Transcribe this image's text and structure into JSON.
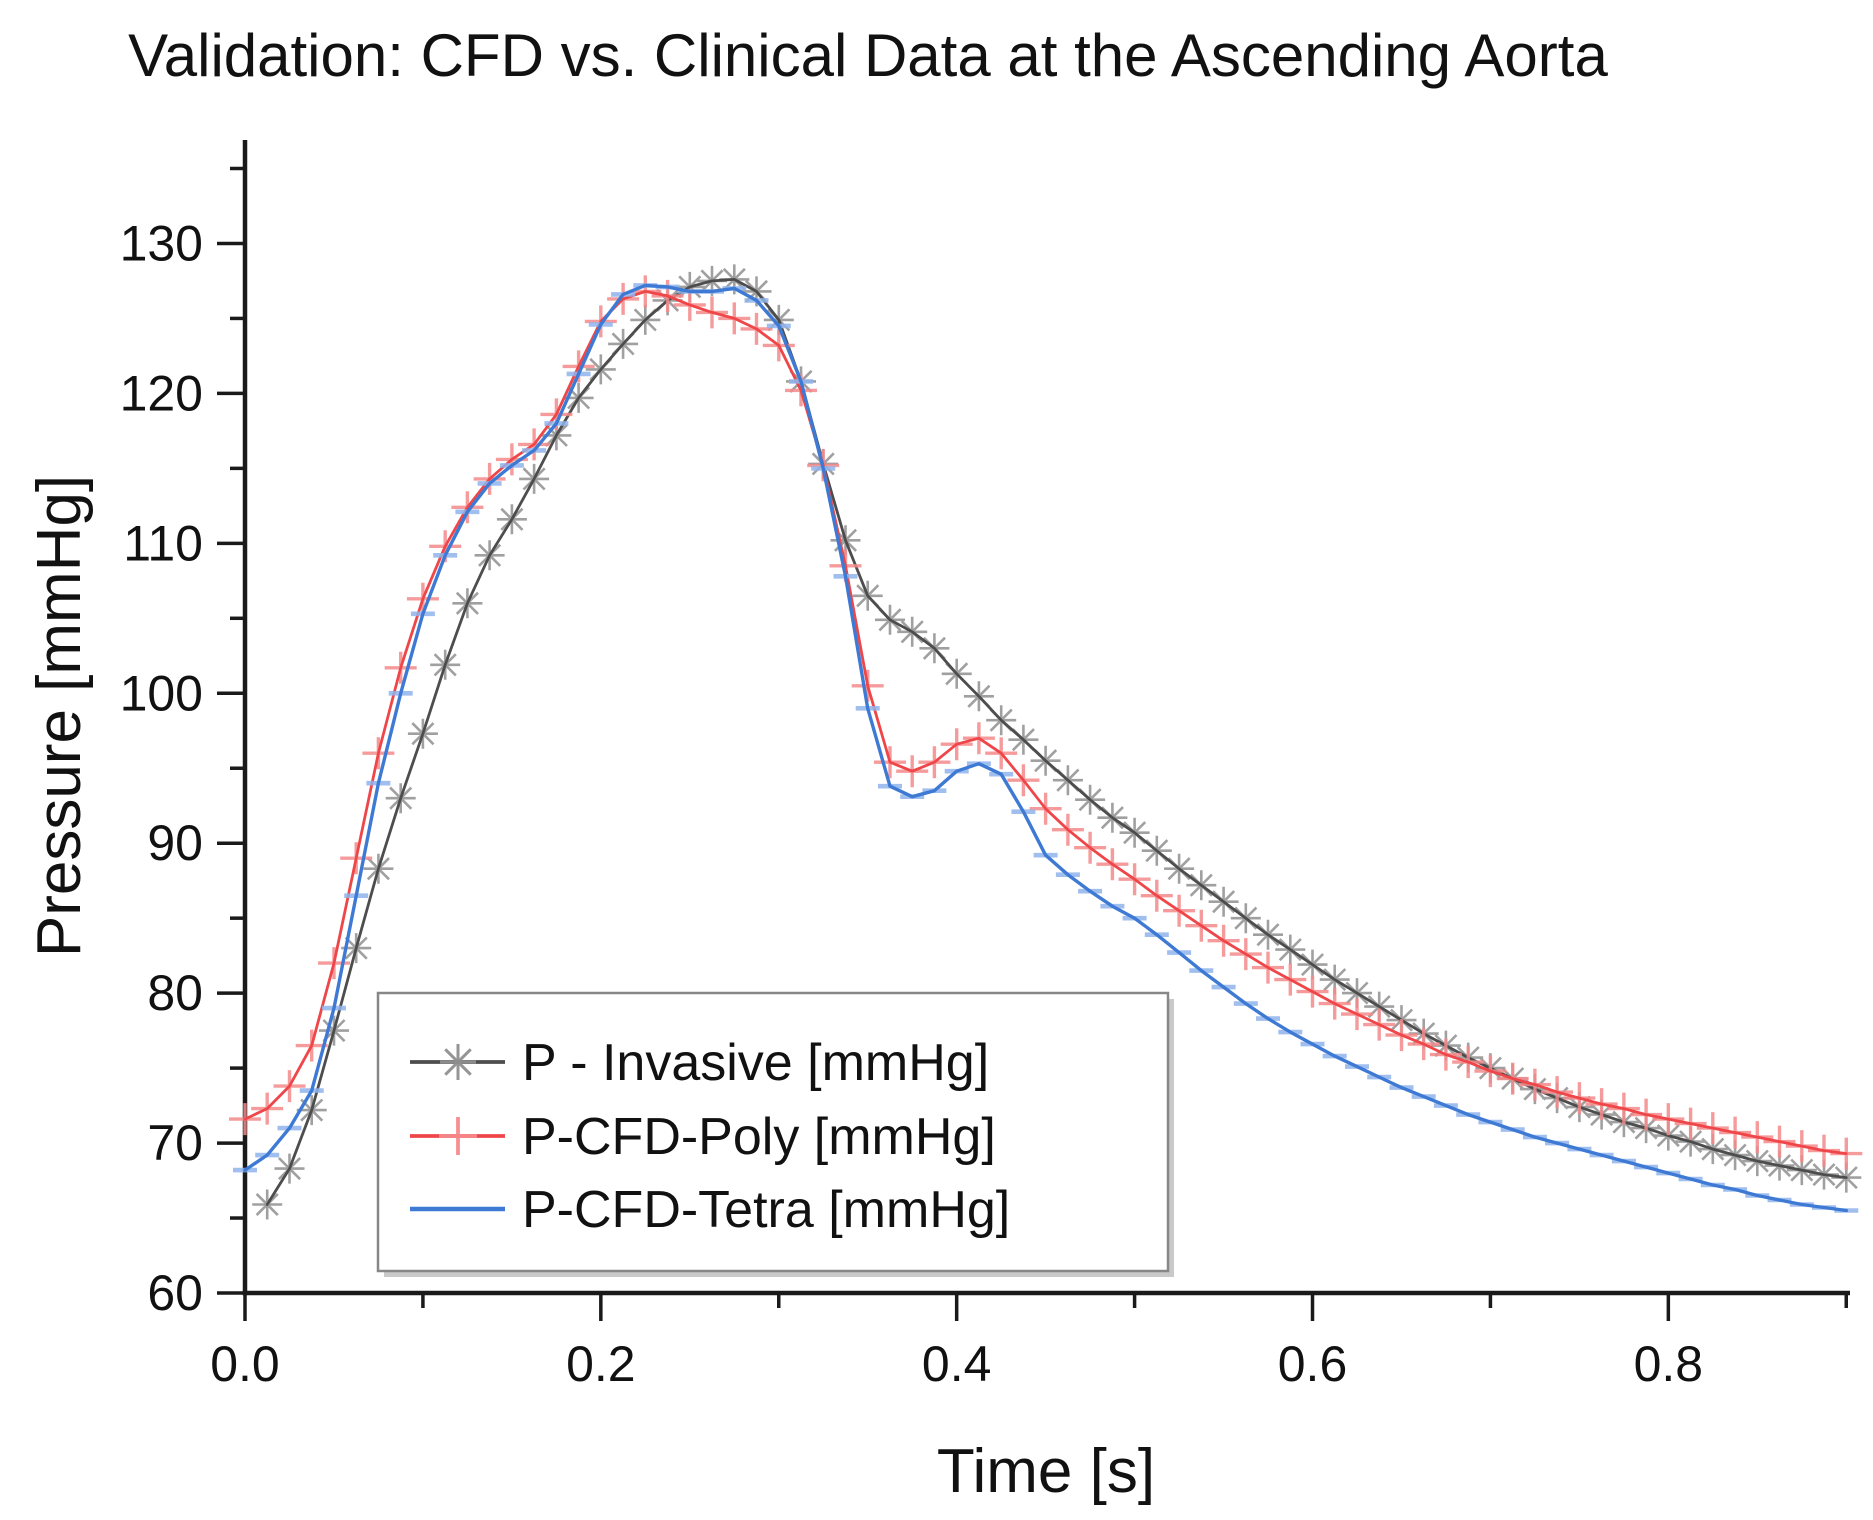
{
  "chart_data": {
    "type": "line",
    "title": "Validation: CFD vs. Clinical Data at the Ascending Aorta",
    "xlabel": "Time [s]",
    "ylabel": "Pressure [mmHg]",
    "xlim": [
      0,
      0.9021
    ],
    "ylim": [
      60,
      136.9
    ],
    "grid": false,
    "background": "#ffffff",
    "axis_color": "#1a1a1a",
    "xticks": {
      "values": [
        0.0,
        0.2,
        0.4,
        0.6,
        0.8
      ],
      "labels": [
        "0.0",
        "0.2",
        "0.4",
        "0.6",
        "0.8"
      ]
    },
    "xticks_minor": [
      0.1,
      0.3,
      0.5,
      0.7,
      0.9
    ],
    "yticks": {
      "values": [
        60,
        70,
        80,
        90,
        100,
        110,
        120,
        130
      ],
      "labels": [
        "60",
        "70",
        "80",
        "90",
        "100",
        "110",
        "120",
        "130"
      ]
    },
    "yticks_minor": [
      65,
      75,
      85,
      95,
      105,
      115,
      125,
      135
    ],
    "x": [
      0,
      0.0125,
      0.025,
      0.0375,
      0.05,
      0.0625,
      0.075,
      0.0875,
      0.1,
      0.1125,
      0.125,
      0.1375,
      0.15,
      0.1625,
      0.175,
      0.1875,
      0.2,
      0.2125,
      0.225,
      0.2375,
      0.25,
      0.2625,
      0.275,
      0.2875,
      0.3,
      0.3125,
      0.325,
      0.3375,
      0.35,
      0.3625,
      0.375,
      0.3875,
      0.4,
      0.4125,
      0.425,
      0.4375,
      0.45,
      0.4625,
      0.475,
      0.4875,
      0.5,
      0.5125,
      0.525,
      0.5375,
      0.55,
      0.5625,
      0.575,
      0.5875,
      0.6,
      0.6125,
      0.625,
      0.6375,
      0.65,
      0.6625,
      0.675,
      0.6875,
      0.7,
      0.7125,
      0.725,
      0.7375,
      0.75,
      0.7625,
      0.775,
      0.7875,
      0.8,
      0.8125,
      0.825,
      0.8375,
      0.85,
      0.8625,
      0.875,
      0.8875,
      0.9
    ],
    "series": [
      {
        "name": "P - Invasive [mmHg]",
        "marker": "asterisk",
        "line_color": "#4d4d4d",
        "marker_color": "#8f8f8f",
        "line_width": 2.8,
        "values": [
          null,
          65.9,
          68.3,
          72.2,
          77.5,
          83,
          88.3,
          93,
          97.3,
          101.9,
          106,
          109.2,
          111.6,
          114.3,
          117.2,
          119.7,
          121.6,
          123.3,
          124.9,
          126.2,
          127.1,
          127.5,
          127.6,
          126.8,
          124.9,
          120.8,
          115.3,
          110.2,
          106.5,
          104.9,
          104.1,
          103,
          101.3,
          99.8,
          98.2,
          96.9,
          95.5,
          94.2,
          92.9,
          91.7,
          90.7,
          89.5,
          88.3,
          87.2,
          86.1,
          85,
          83.9,
          82.9,
          81.9,
          80.9,
          80,
          79.1,
          78.2,
          77.3,
          76.5,
          75.7,
          75,
          74.3,
          73.6,
          73,
          72.4,
          71.9,
          71.4,
          71,
          70.5,
          70.1,
          69.6,
          69.2,
          68.8,
          68.5,
          68.2,
          67.9,
          67.7
        ]
      },
      {
        "name": "P-CFD-Poly [mmHg]",
        "marker": "plus",
        "line_color": "#ee4649",
        "marker_color": "#f4898b",
        "line_width": 2.8,
        "values": [
          71.6,
          72.3,
          73.8,
          76.5,
          82,
          89,
          96,
          101.7,
          106.3,
          109.8,
          112.4,
          114.3,
          115.6,
          116.6,
          118.6,
          121.8,
          124.8,
          126.3,
          126.8,
          126.5,
          125.9,
          125.4,
          125,
          124.3,
          123.2,
          120.2,
          115.2,
          108.5,
          100.5,
          95.4,
          94.8,
          95.4,
          96.6,
          97,
          96,
          94.2,
          92.3,
          90.9,
          89.7,
          88.6,
          87.6,
          86.5,
          85.5,
          84.5,
          83.5,
          82.6,
          81.7,
          80.9,
          80.1,
          79.3,
          78.6,
          77.9,
          77.2,
          76.6,
          75.9,
          75.4,
          74.8,
          74.3,
          73.9,
          73.4,
          73,
          72.6,
          72.3,
          71.9,
          71.6,
          71.3,
          71,
          70.7,
          70.4,
          70.1,
          69.8,
          69.5,
          69.3
        ]
      },
      {
        "name": "P-CFD-Tetra [mmHg]",
        "marker": "hdash",
        "line_color": "#3e7ad4",
        "marker_color": "#8fb4ec",
        "line_width": 3.4,
        "values": [
          68.2,
          69.2,
          71,
          73.5,
          79,
          86.5,
          94,
          100,
          105.3,
          109.2,
          112.1,
          114,
          115.2,
          116.2,
          118,
          121.3,
          124.6,
          126.6,
          127.2,
          127.1,
          126.8,
          126.8,
          127,
          126.2,
          124.5,
          120.8,
          115,
          107.8,
          99,
          93.8,
          93.1,
          93.5,
          94.8,
          95.3,
          94.6,
          92.1,
          89.2,
          87.9,
          86.8,
          85.8,
          85,
          83.9,
          82.7,
          81.5,
          80.4,
          79.3,
          78.3,
          77.4,
          76.6,
          75.8,
          75.1,
          74.4,
          73.7,
          73.1,
          72.5,
          71.9,
          71.4,
          70.9,
          70.4,
          70,
          69.6,
          69.2,
          68.8,
          68.4,
          68,
          67.6,
          67.2,
          66.9,
          66.5,
          66.2,
          65.9,
          65.7,
          65.5
        ]
      }
    ],
    "legend": {
      "position": "lower-left-inside",
      "border_color": "#878787",
      "entries": [
        {
          "label": "P - Invasive [mmHg]",
          "series_index": 0
        },
        {
          "label": "P-CFD-Poly [mmHg]",
          "series_index": 1
        },
        {
          "label": "P-CFD-Tetra [mmHg]",
          "series_index": 2
        }
      ]
    }
  }
}
